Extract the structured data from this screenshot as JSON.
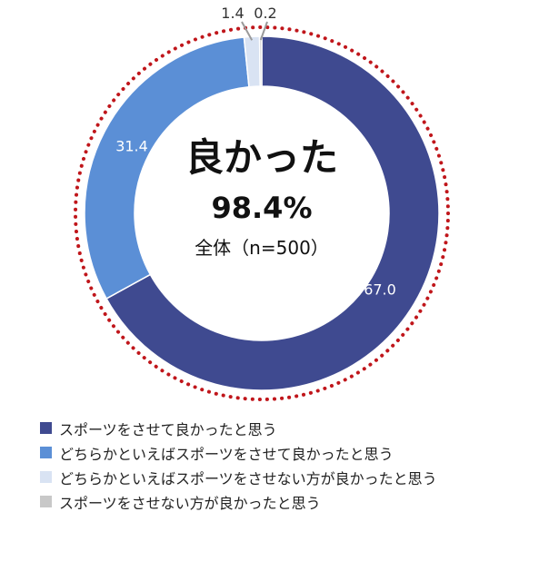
{
  "chart_data": {
    "type": "pie",
    "variant": "donut",
    "center": {
      "title": "良かった",
      "value": "98.4%",
      "subtitle": "全体（n=500）"
    },
    "slices": [
      {
        "label": "スポーツをさせて良かったと思う",
        "value": 67.0,
        "display": "67.0",
        "color": "#3f4a90"
      },
      {
        "label": "どちらかといえばスポーツをさせて良かったと思う",
        "value": 31.4,
        "display": "31.4",
        "color": "#5b8fd6"
      },
      {
        "label": "どちらかといえばスポーツをさせない方が良かったと思う",
        "value": 1.4,
        "display": "1.4",
        "color": "#d9e3f3"
      },
      {
        "label": "スポーツをさせない方が良かったと思う",
        "value": 0.2,
        "display": "0.2",
        "color": "#c8c8c8"
      }
    ],
    "highlight_ring_color": "#c0161b",
    "legend_position": "bottom"
  }
}
